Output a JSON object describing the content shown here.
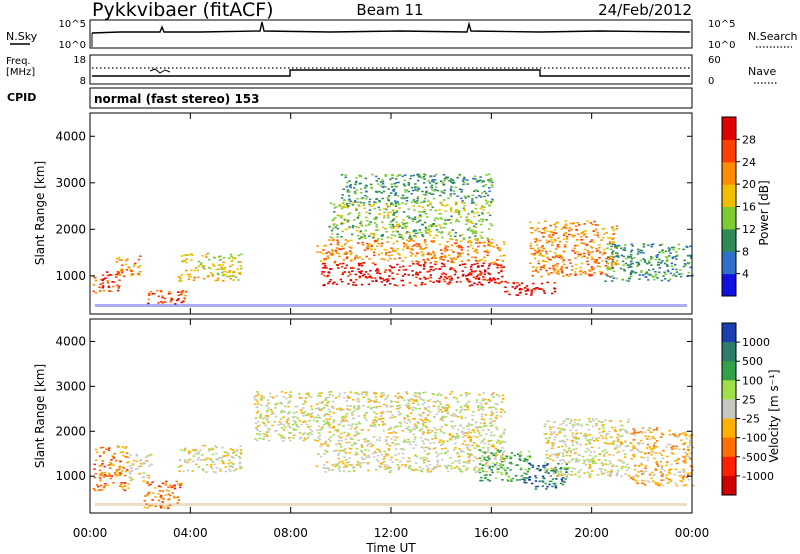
{
  "header": {
    "station": "Pykkvibaer (fitACF)",
    "beam": "Beam 11",
    "date": "24/Feb/2012"
  },
  "nsky_panel": {
    "left_label": "N.Sky",
    "right_label": "N.Search",
    "left_ticks": [
      "10^5",
      "10^0"
    ],
    "right_ticks": [
      "10^5",
      "10^0"
    ]
  },
  "freq_panel": {
    "left_label_1": "Freq.",
    "left_label_2": "[MHz]",
    "right_label": "Nave",
    "left_ticks": [
      "18",
      "8"
    ],
    "right_ticks": [
      "60",
      "0"
    ]
  },
  "cpid_panel": {
    "label": "CPID",
    "value": "normal (fast stereo) 153"
  },
  "chart_data": [
    {
      "type": "heatmap",
      "name": "power",
      "ylabel": "Slant Range [km]",
      "xlabel": "",
      "x_ticks": [
        "00:00",
        "04:00",
        "08:00",
        "12:00",
        "16:00",
        "20:00",
        "00:00"
      ],
      "xlim": [
        0,
        24
      ],
      "ylim": [
        180,
        4500
      ],
      "y_ticks": [
        1000,
        2000,
        3000,
        4000
      ],
      "colorbar": {
        "label": "Power [dB]",
        "ticks": [
          "4",
          "8",
          "12",
          "16",
          "20",
          "24",
          "28"
        ],
        "colors": [
          "#1010e0",
          "#2f6fc9",
          "#2e8b57",
          "#7ccd32",
          "#f0c000",
          "#ff8c00",
          "#ff4000",
          "#e00000"
        ]
      },
      "regions": [
        {
          "t": [
            0.1,
            1.2
          ],
          "r": [
            650,
            1100
          ],
          "level": 6
        },
        {
          "t": [
            1.0,
            2.0
          ],
          "r": [
            1000,
            1450
          ],
          "level": 5
        },
        {
          "t": [
            2.1,
            3.8
          ],
          "r": [
            400,
            700
          ],
          "level": 6
        },
        {
          "t": [
            3.5,
            6.0
          ],
          "r": [
            900,
            1500
          ],
          "level": 4
        },
        {
          "t": [
            9.2,
            16.5
          ],
          "r": [
            800,
            1300
          ],
          "level": 7
        },
        {
          "t": [
            9.0,
            16.5
          ],
          "r": [
            1300,
            1800
          ],
          "level": 5
        },
        {
          "t": [
            9.5,
            16.0
          ],
          "r": [
            1800,
            2600
          ],
          "level": 3
        },
        {
          "t": [
            10.0,
            16.0
          ],
          "r": [
            2600,
            3200
          ],
          "level": 2
        },
        {
          "t": [
            16.5,
            18.5
          ],
          "r": [
            600,
            900
          ],
          "level": 7
        },
        {
          "t": [
            17.5,
            21.0
          ],
          "r": [
            1000,
            2200
          ],
          "level": 5
        },
        {
          "t": [
            20.5,
            24.0
          ],
          "r": [
            900,
            1700
          ],
          "level": 2
        }
      ]
    },
    {
      "type": "heatmap",
      "name": "velocity",
      "ylabel": "Slant Range [km]",
      "xlabel": "Time UT",
      "x_ticks": [
        "00:00",
        "04:00",
        "08:00",
        "12:00",
        "16:00",
        "20:00",
        "00:00"
      ],
      "xlim": [
        0,
        24
      ],
      "ylim": [
        180,
        4500
      ],
      "y_ticks": [
        1000,
        2000,
        3000,
        4000
      ],
      "colorbar": {
        "label": "Velocity [m s⁻¹]",
        "ticks": [
          "1000",
          "500",
          "100",
          "25",
          "-25",
          "-100",
          "-500",
          "-1000"
        ],
        "colors": [
          "#1a3fb0",
          "#2e7d6b",
          "#33a04a",
          "#9fe04a",
          "#c8c8c0",
          "#ffb000",
          "#ff7000",
          "#ff2000",
          "#d00000"
        ]
      },
      "regions": [
        {
          "t": [
            0.1,
            1.5
          ],
          "r": [
            700,
            1700
          ],
          "level": 6
        },
        {
          "t": [
            1.5,
            2.5
          ],
          "r": [
            900,
            1500
          ],
          "level": 4
        },
        {
          "t": [
            2.1,
            3.6
          ],
          "r": [
            300,
            900
          ],
          "level": 6
        },
        {
          "t": [
            3.5,
            6.0
          ],
          "r": [
            1100,
            1700
          ],
          "level": 4
        },
        {
          "t": [
            6.5,
            9.0
          ],
          "r": [
            1800,
            2900
          ],
          "level": 4
        },
        {
          "t": [
            9.0,
            16.5
          ],
          "r": [
            1100,
            2900
          ],
          "level": 4
        },
        {
          "t": [
            15.5,
            17.5
          ],
          "r": [
            900,
            1600
          ],
          "level": 2
        },
        {
          "t": [
            17.2,
            19.0
          ],
          "r": [
            700,
            1300
          ],
          "level": 1
        },
        {
          "t": [
            18.0,
            21.5
          ],
          "r": [
            1000,
            2300
          ],
          "level": 4
        },
        {
          "t": [
            21.5,
            24.0
          ],
          "r": [
            800,
            2100
          ],
          "level": 5
        }
      ]
    }
  ],
  "colors": {
    "axis": "#000000",
    "frame": "#000000",
    "ground": "#1010e0"
  }
}
